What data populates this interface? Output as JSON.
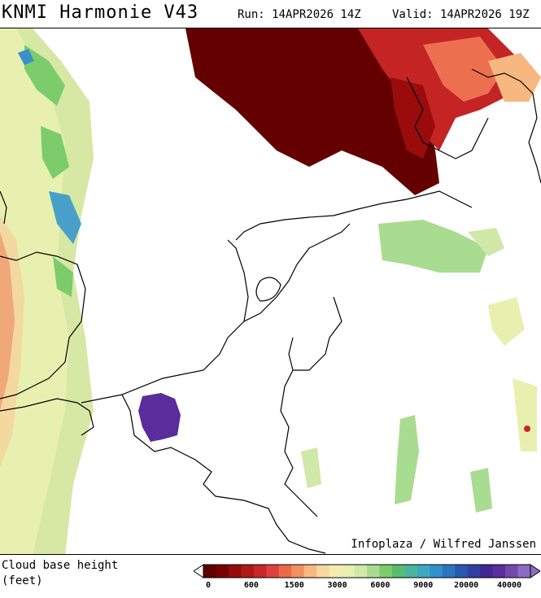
{
  "header": {
    "title": "KNMI Harmonie V43",
    "run": "Run: 14APR2026 14Z",
    "valid": "Valid: 14APR2026 19Z"
  },
  "map": {
    "credit": "Infoplaza / Wilfred Janssen"
  },
  "legend": {
    "label": "Cloud base height\n(feet)",
    "ticks": [
      "0",
      "600",
      "1500",
      "3000",
      "6000",
      "9000",
      "20000",
      "40000"
    ],
    "colors": [
      "#5c0000",
      "#7a0000",
      "#960a0a",
      "#b01818",
      "#c82828",
      "#dd4040",
      "#ec6a4a",
      "#f39060",
      "#f6b880",
      "#f6d8a0",
      "#f4ecb0",
      "#e8f0b0",
      "#d0e8a8",
      "#a8dc90",
      "#7ccc6c",
      "#58bc70",
      "#48b4a0",
      "#3ca8c0",
      "#3090cc",
      "#2c74c0",
      "#2a58b0",
      "#3040a0",
      "#402890",
      "#5a2c9c",
      "#7448ac",
      "#8c6cc0"
    ]
  }
}
